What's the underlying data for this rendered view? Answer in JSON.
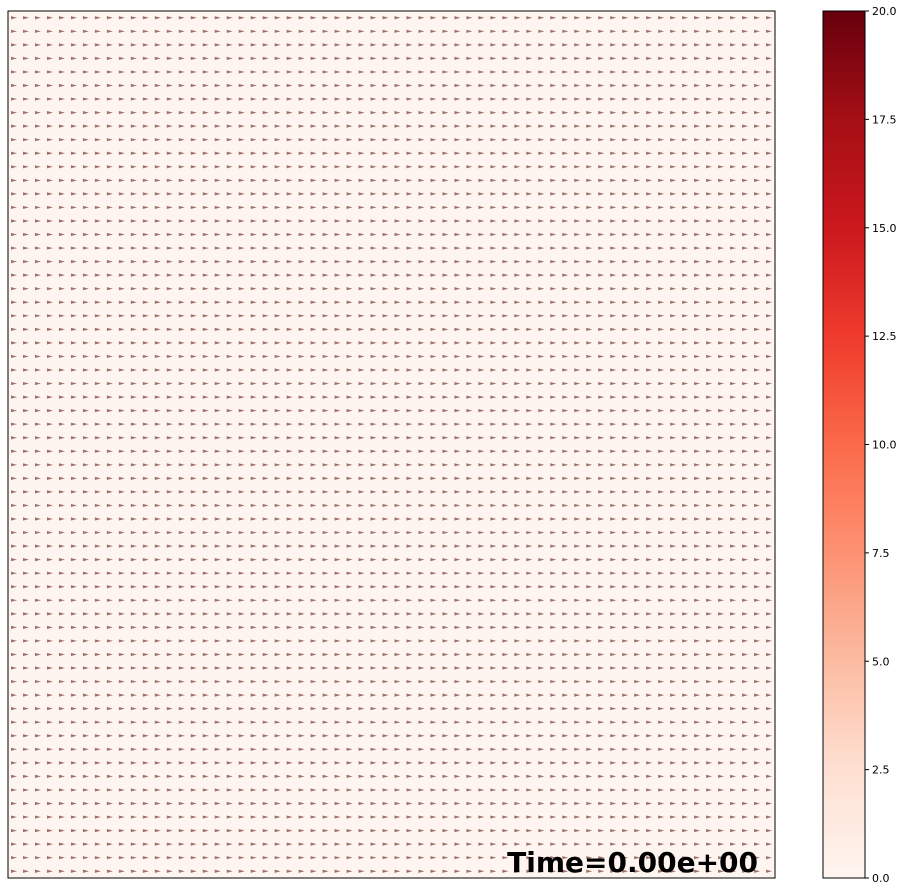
{
  "chart_data": {
    "type": "heatmap",
    "overlay": "quiver",
    "title": "",
    "xlabel": "",
    "ylabel": "",
    "field_value": 0.0,
    "vector_direction": "right",
    "vector_grid": {
      "cols": 64,
      "rows": 64
    },
    "colormap": "Reds",
    "colorbar": {
      "range": [
        0.0,
        20.0
      ],
      "ticks": [
        "0.0",
        "2.5",
        "5.0",
        "7.5",
        "10.0",
        "12.5",
        "15.0",
        "17.5",
        "20.0"
      ],
      "tick_values": [
        0.0,
        2.5,
        5.0,
        7.5,
        10.0,
        12.5,
        15.0,
        17.5,
        20.0
      ],
      "stops": [
        "#fff5f0",
        "#fee0d2",
        "#fcbba1",
        "#fc9272",
        "#fb6a4a",
        "#ef3b2c",
        "#cb181d",
        "#a50f15",
        "#67000d"
      ]
    },
    "annotation": "Time=0.00e+00",
    "arrow_color": "#8c5a52",
    "field_color": "#fff5f0"
  }
}
